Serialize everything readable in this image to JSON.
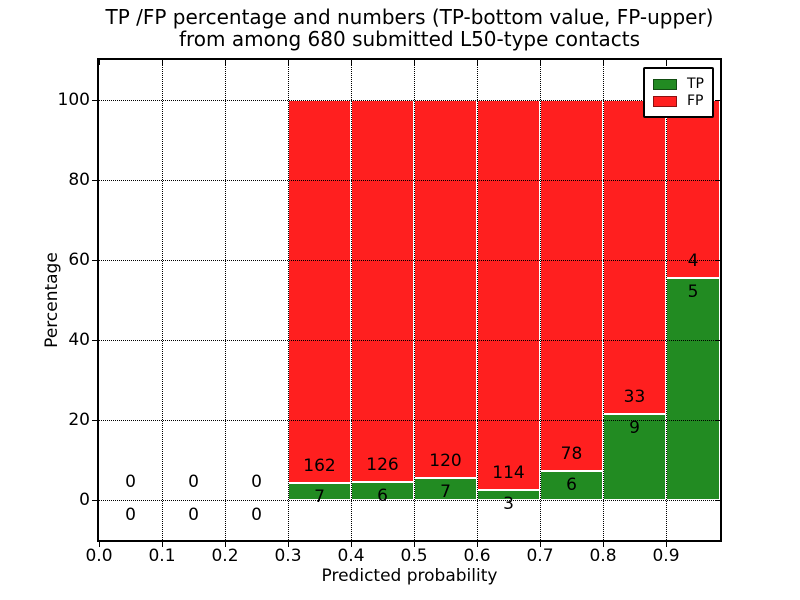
{
  "title": {
    "line1": "TP /FP percentage and numbers (TP-bottom value, FP-upper)",
    "line2": "from among 680 submitted L50-type contacts"
  },
  "axes": {
    "xlabel": "Predicted probability",
    "ylabel": "Percentage",
    "xticks": [
      {
        "v": 0.0,
        "label": "0.0"
      },
      {
        "v": 0.1,
        "label": "0.1"
      },
      {
        "v": 0.2,
        "label": "0.2"
      },
      {
        "v": 0.3,
        "label": "0.3"
      },
      {
        "v": 0.4,
        "label": "0.4"
      },
      {
        "v": 0.5,
        "label": "0.5"
      },
      {
        "v": 0.6,
        "label": "0.6"
      },
      {
        "v": 0.7,
        "label": "0.7"
      },
      {
        "v": 0.8,
        "label": "0.8"
      },
      {
        "v": 0.9,
        "label": "0.9"
      }
    ],
    "yticks": [
      {
        "v": 0,
        "label": "0"
      },
      {
        "v": 20,
        "label": "20"
      },
      {
        "v": 40,
        "label": "40"
      },
      {
        "v": 60,
        "label": "60"
      },
      {
        "v": 80,
        "label": "80"
      },
      {
        "v": 100,
        "label": "100"
      }
    ]
  },
  "legend": {
    "items": [
      {
        "label": "TP",
        "color": "#228B22"
      },
      {
        "label": "FP",
        "color": "#FF1F1F"
      }
    ]
  },
  "colors": {
    "tp": "#228B22",
    "fp": "#FF1F1F",
    "bar_edge": "#FFFFFF",
    "grid": "#000000",
    "background": "#FFFFFF",
    "text": "#000000"
  },
  "chart_data": {
    "type": "bar",
    "stacked": true,
    "title": "TP /FP percentage and numbers (TP-bottom value, FP-upper) from among 680 submitted L50-type contacts",
    "xlabel": "Predicted probability",
    "ylabel": "Percentage",
    "xlim": [
      0,
      0.986
    ],
    "ylim": [
      -10,
      110
    ],
    "grid": "dotted, both axes",
    "legend_position": "upper right",
    "total_submitted": 680,
    "bin_width": 0.1,
    "bin_starts": [
      0.0,
      0.1,
      0.2,
      0.3,
      0.4,
      0.5,
      0.6,
      0.7,
      0.8,
      0.9
    ],
    "series": [
      {
        "name": "TP",
        "color": "#228B22",
        "counts": [
          0,
          0,
          0,
          7,
          6,
          7,
          3,
          6,
          9,
          5
        ]
      },
      {
        "name": "FP",
        "color": "#FF1F1F",
        "counts": [
          0,
          0,
          0,
          162,
          126,
          120,
          114,
          78,
          33,
          4
        ]
      }
    ],
    "tp_percent": [
      null,
      null,
      null,
      4.14,
      4.55,
      5.51,
      2.56,
      7.14,
      21.43,
      55.56
    ],
    "fp_percent": [
      null,
      null,
      null,
      95.86,
      95.45,
      94.49,
      97.44,
      92.86,
      78.57,
      44.44
    ],
    "bars_span_0_to_100_percent": true
  }
}
